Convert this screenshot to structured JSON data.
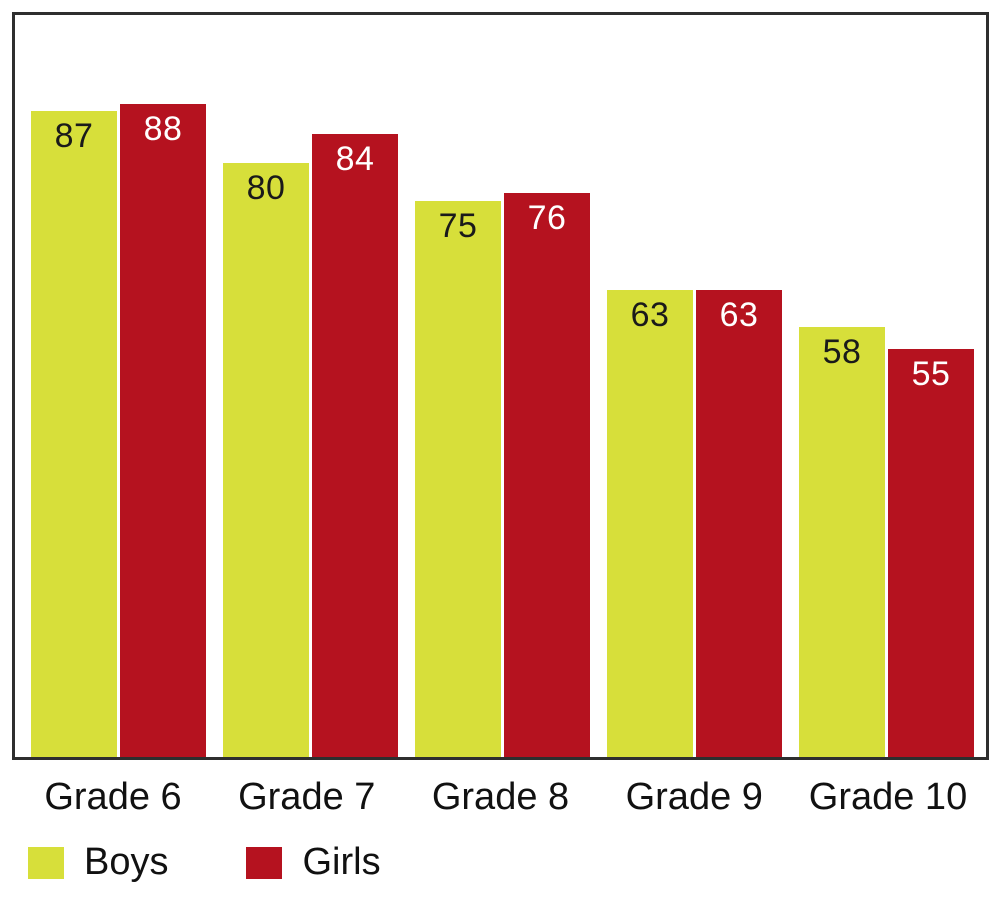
{
  "chart_data": {
    "type": "bar",
    "title": "",
    "xlabel": "",
    "ylabel": "",
    "ylim": [
      0,
      100
    ],
    "grid": false,
    "legend_position": "bottom-left",
    "categories": [
      "Grade 6",
      "Grade 7",
      "Grade 8",
      "Grade 9",
      "Grade 10"
    ],
    "series": [
      {
        "name": "Boys",
        "color": "#d7df3a",
        "label_color": "#1a1a1a",
        "values": [
          87,
          80,
          75,
          63,
          58
        ]
      },
      {
        "name": "Girls",
        "color": "#b5121f",
        "label_color": "#ffffff",
        "values": [
          88,
          84,
          76,
          63,
          55
        ]
      }
    ]
  },
  "legend": {
    "items": [
      {
        "label": "Boys",
        "color": "#d7df3a"
      },
      {
        "label": "Girls",
        "color": "#b5121f"
      }
    ]
  }
}
